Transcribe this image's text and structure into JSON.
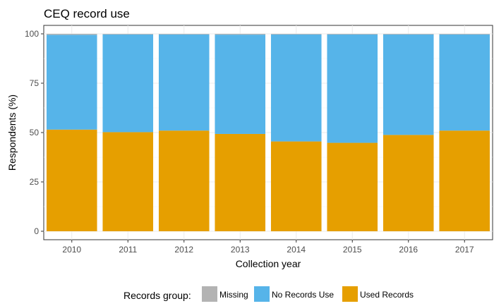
{
  "chart_data": {
    "type": "bar",
    "stacked": true,
    "title": "CEQ record use",
    "xlabel": "Collection year",
    "ylabel": "Respondents (%)",
    "ylim": [
      0,
      100
    ],
    "yticks": [
      0,
      25,
      50,
      75,
      100
    ],
    "grid": true,
    "legend_position": "bottom",
    "legend_title": "Records group:",
    "categories": [
      "2010",
      "2011",
      "2012",
      "2013",
      "2014",
      "2015",
      "2016",
      "2017"
    ],
    "series": [
      {
        "name": "Used Records",
        "color": "#E69F00",
        "values": [
          51.5,
          50.2,
          51.0,
          49.3,
          45.5,
          44.8,
          48.8,
          51.0
        ]
      },
      {
        "name": "No Records Use",
        "color": "#56B4E9",
        "values": [
          48.0,
          49.5,
          48.7,
          50.3,
          54.2,
          54.9,
          50.9,
          48.7
        ]
      },
      {
        "name": "Missing",
        "color": "#B3B3B3",
        "values": [
          0.5,
          0.3,
          0.3,
          0.4,
          0.3,
          0.3,
          0.3,
          0.3
        ]
      }
    ],
    "legend_order": [
      "Missing",
      "No Records Use",
      "Used Records"
    ]
  }
}
